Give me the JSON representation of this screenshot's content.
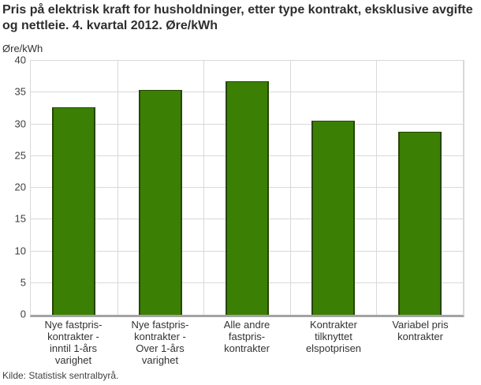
{
  "header": {
    "title_line1": "Pris på elektrisk kraft for husholdninger, etter type kontrakt, eksklusive avgifte",
    "title_line2": "og nettleie. 4. kvartal 2012. Øre/kWh"
  },
  "footer": {
    "source": "Kilde: Statistisk sentralbyrå."
  },
  "chart_data": {
    "type": "bar",
    "title": "Pris på elektrisk kraft for husholdninger, etter type kontrakt, eksklusive avgifte og nettleie. 4. kvartal 2012. Øre/kWh",
    "unit_label": "Øre/kWh",
    "ylabel": "Øre/kWh",
    "xlabel": "",
    "categories": [
      "Nye fastpris-kontrakter - inntil 1-års varighet",
      "Nye fastpris-kontrakter - Over 1-års varighet",
      "Alle andre fastpris-kontrakter",
      "Kontrakter tilknyttet elspotprisen",
      "Variabel pris kontrakter"
    ],
    "category_label_lines": [
      [
        "Nye fastpris-",
        "kontrakter -",
        "inntil 1-års",
        "varighet"
      ],
      [
        "Nye fastpris-",
        "kontrakter -",
        "Over 1-års",
        "varighet"
      ],
      [
        "Alle andre",
        "fastpris-",
        "kontrakter"
      ],
      [
        "Kontrakter",
        "tilknyttet",
        "elspotprisen"
      ],
      [
        "Variabel pris",
        "kontrakter"
      ]
    ],
    "values": [
      32.7,
      35.4,
      36.8,
      30.5,
      28.8
    ],
    "ylim": [
      0,
      40
    ],
    "y_ticks": [
      0,
      5,
      10,
      15,
      20,
      25,
      30,
      35,
      40
    ],
    "grid": true,
    "legend": "none",
    "colors": {
      "bar_fill": "#3b7f04",
      "bar_border": "#264502",
      "gridline": "#d9d9d9",
      "axis_line": "#a3a3a3",
      "text": "#333333",
      "title_text": "#2e2e2e"
    }
  }
}
